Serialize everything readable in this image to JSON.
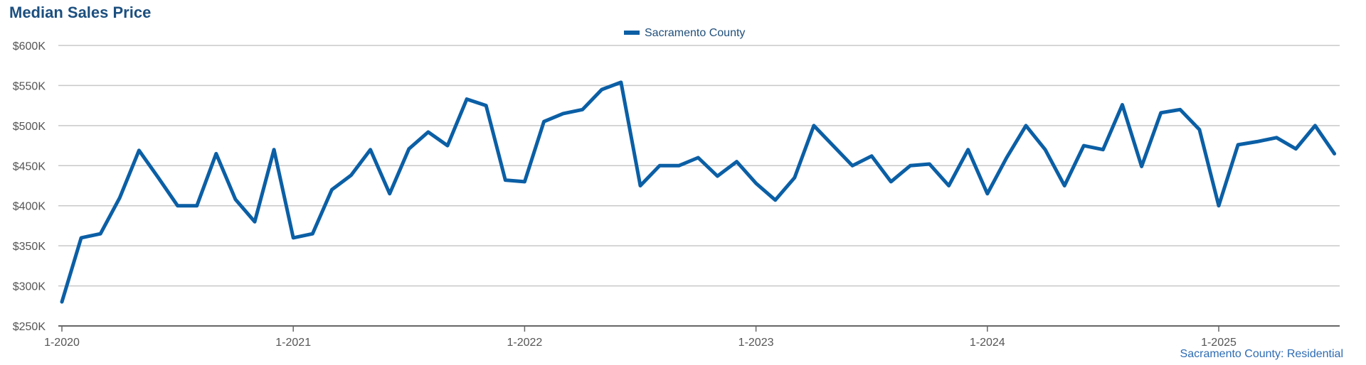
{
  "chart_data": {
    "type": "line",
    "title": "Median Sales Price",
    "footer": "Sacramento County: Residential",
    "y_tick_labels": [
      "$250K",
      "$300K",
      "$350K",
      "$400K",
      "$450K",
      "$500K",
      "$550K",
      "$600K"
    ],
    "x_tick_labels": [
      "1-2020",
      "1-2021",
      "1-2022",
      "1-2023",
      "1-2024",
      "1-2025"
    ],
    "ylim": [
      250000,
      600000
    ],
    "grid": true,
    "legend_position": "top-center",
    "x_start": "2020-01",
    "series": [
      {
        "name": "Sacramento County",
        "color": "#0b5fa5",
        "values": [
          280000,
          360000,
          365000,
          410000,
          469000,
          435000,
          400000,
          400000,
          465000,
          408000,
          380000,
          470000,
          360000,
          365000,
          420000,
          438000,
          470000,
          415000,
          471000,
          492000,
          475000,
          533000,
          525000,
          432000,
          430000,
          505000,
          515000,
          520000,
          545000,
          554000,
          425000,
          450000,
          450000,
          460000,
          437000,
          455000,
          428000,
          407000,
          435000,
          500000,
          475000,
          450000,
          462000,
          430000,
          450000,
          452000,
          425000,
          470000,
          415000,
          460000,
          500000,
          470000,
          425000,
          475000,
          470000,
          526000,
          449000,
          516000,
          520000,
          495000,
          400000,
          476000,
          480000,
          485000,
          471000,
          500000,
          465000
        ]
      }
    ]
  }
}
